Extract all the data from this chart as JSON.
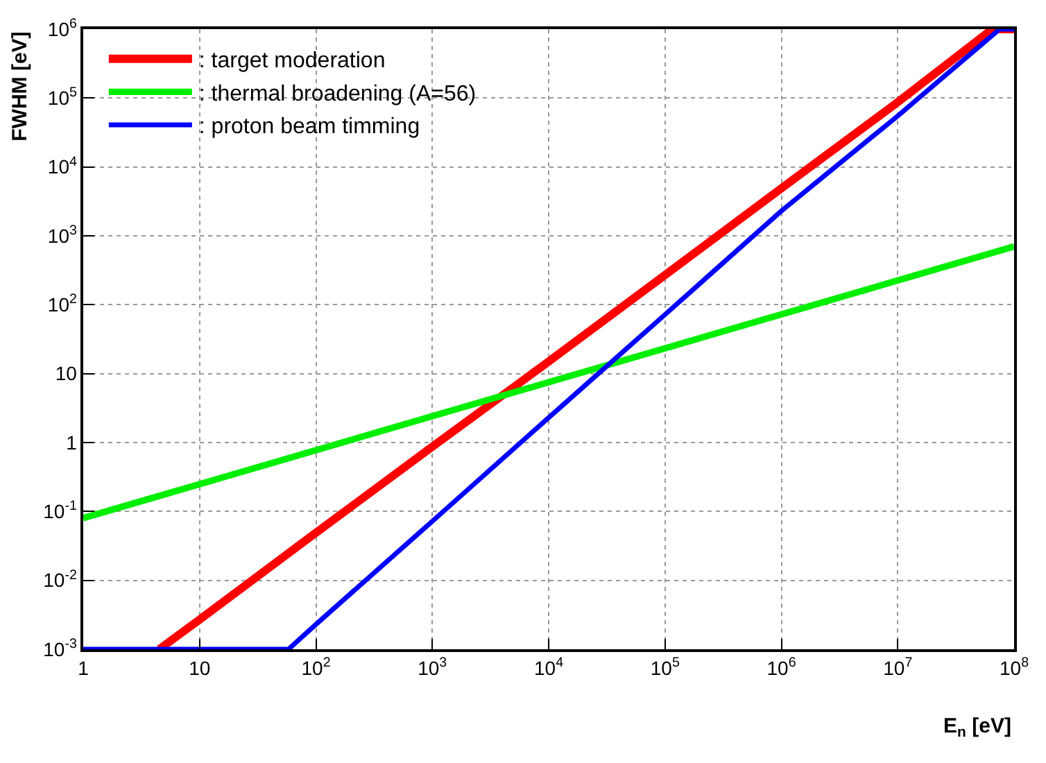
{
  "chart_data": {
    "type": "line",
    "xlabel": "E$_{n}$ [eV]",
    "ylabel": "FWHM [eV]",
    "log": "xy",
    "grid": true,
    "legend": "top left",
    "marker": "none",
    "line_style": "solid",
    "xlim": [
      1,
      100000000
    ],
    "ylim": [
      0.001,
      1000000
    ],
    "xticks": [
      1,
      10,
      {
        "value": 100,
        "label": "10$^{2}$"
      },
      {
        "value": 1000,
        "label": "10$^{3}$"
      },
      {
        "value": 10000,
        "label": "10$^{4}$"
      },
      {
        "value": 100000,
        "label": "10$^{5}$"
      },
      {
        "value": 1000000,
        "label": "10$^{6}$"
      },
      {
        "value": 10000000,
        "label": "10$^{7}$"
      },
      {
        "value": 100000000,
        "label": "10$^{8}$"
      }
    ],
    "yticks": [
      {
        "value": 0.001,
        "label": "10$^{-3}$"
      },
      {
        "value": 0.01,
        "label": "10$^{-2}$"
      },
      {
        "value": 0.1,
        "label": "10$^{-1}$"
      },
      1,
      10,
      {
        "value": 100,
        "label": "10$^{2}$"
      },
      {
        "value": 1000,
        "label": "10$^{3}$"
      },
      {
        "value": 10000,
        "label": "10$^{4}$"
      },
      {
        "value": 100000,
        "label": "10$^{5}$"
      },
      {
        "value": 1000000,
        "label": "10$^{6}$"
      }
    ],
    "series": [
      {
        "name": ": target moderation",
        "color": "#ff0000",
        "x": [
          4.5,
          10,
          100,
          1000,
          10000,
          100000,
          1000000,
          10000000,
          65000000,
          100000000
        ],
        "values": [
          0.001,
          0.0027,
          0.049,
          0.87,
          15,
          270,
          4900,
          87000,
          1000000,
          1000000
        ]
      },
      {
        "name": ": thermal broadening (A=56)",
        "color": "#00ee00",
        "x": [
          1,
          10000,
          100000000
        ],
        "values": [
          0.08,
          7.5,
          700
        ]
      },
      {
        "name": ": proton beam timming",
        "color": "#0000ff",
        "x": [
          1,
          58,
          100,
          1000,
          10000,
          100000,
          1000000,
          10000000,
          75000000,
          100000000
        ],
        "values": [
          0.001,
          0.001,
          0.0023,
          0.072,
          2.3,
          72,
          2300,
          55000,
          1000000,
          1000000
        ]
      }
    ]
  }
}
